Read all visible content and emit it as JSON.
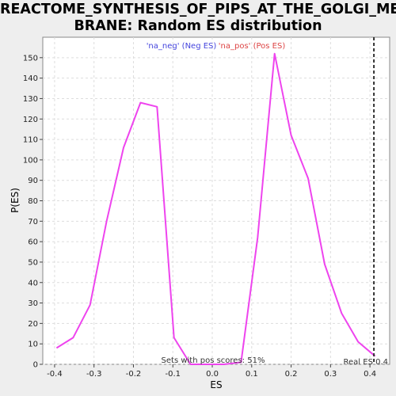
{
  "chart_data": {
    "type": "line",
    "title_line1": "REACTOME_SYNTHESIS_OF_PIPS_AT_THE_GOLGI_MEM",
    "title_line2": "BRANE: Random ES distribution",
    "xlabel": "ES",
    "ylabel": "P(ES)",
    "xlim": [
      -0.43,
      0.45
    ],
    "ylim": [
      0,
      160
    ],
    "x_ticks": [
      -0.4,
      -0.3,
      -0.2,
      -0.1,
      0.0,
      0.1,
      0.2,
      0.3,
      0.4
    ],
    "x_tick_labels": [
      "-0.4",
      "-0.3",
      "-0.2",
      "-0.1",
      "0.0",
      "0.1",
      "0.2",
      "0.3",
      "0.4"
    ],
    "y_ticks": [
      0,
      10,
      20,
      30,
      40,
      50,
      60,
      70,
      80,
      90,
      100,
      110,
      120,
      130,
      140,
      150
    ],
    "y_tick_labels": [
      "0",
      "10",
      "20",
      "30",
      "40",
      "50",
      "60",
      "70",
      "80",
      "90",
      "100",
      "110",
      "120",
      "130",
      "140",
      "150"
    ],
    "grid": true,
    "series": [
      {
        "color": "#ee44ee",
        "x": [
          -0.395,
          -0.353,
          -0.31,
          -0.268,
          -0.225,
          -0.182,
          -0.14,
          -0.097,
          -0.055,
          -0.012,
          0.03,
          0.073,
          0.115,
          0.158,
          0.2,
          0.243,
          0.285,
          0.328,
          0.37,
          0.413
        ],
        "y": [
          8,
          13,
          29,
          70,
          106,
          128,
          126,
          13,
          0,
          0,
          0,
          1,
          62,
          152,
          112,
          91,
          49,
          25,
          11,
          4
        ]
      }
    ],
    "legend": [
      {
        "label": "'na_neg' (Neg ES)",
        "color": "#4444dd"
      },
      {
        "label": "'na_pos' (Pos ES)",
        "color": "#dd4444"
      }
    ],
    "real_es": {
      "x": 0.41,
      "label": "Real ES 0.4",
      "color": "#333333"
    },
    "pos_scores_text": "Sets with pos scores: 51%"
  }
}
